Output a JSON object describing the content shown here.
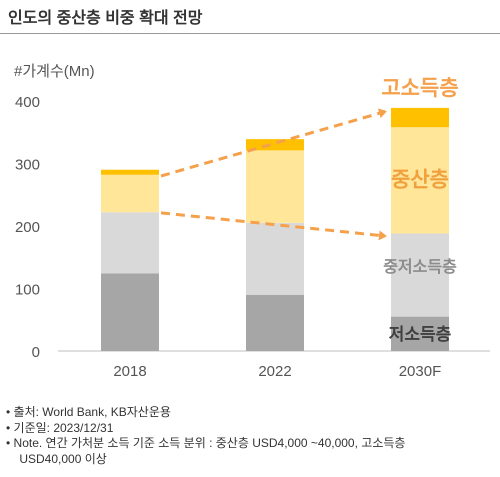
{
  "title": "인도의 중산층 비중 확대 전망",
  "chart_data": {
    "type": "bar",
    "stacked": true,
    "ylabel": "#가계수(Mn)",
    "ylim": [
      0,
      400
    ],
    "yticks": [
      0,
      100,
      200,
      300,
      400
    ],
    "grid": false,
    "categories": [
      "2018",
      "2022",
      "2030F"
    ],
    "series": [
      {
        "name": "저소득층",
        "color": "#a6a6a6",
        "values": [
          124,
          90,
          55
        ]
      },
      {
        "name": "중저소득층",
        "color": "#d9d9d9",
        "values": [
          98,
          115,
          133
        ]
      },
      {
        "name": "중산층",
        "color": "#ffe699",
        "values": [
          60,
          116,
          170
        ]
      },
      {
        "name": "고소득층",
        "color": "#ffc000",
        "values": [
          8,
          18,
          31
        ]
      }
    ],
    "annotations": [
      {
        "text": "고소득층",
        "color": "#f5a04a"
      },
      {
        "text": "중산층",
        "color": "#f0a03c"
      },
      {
        "text": "중저소득층",
        "color": "#8c8c8c"
      },
      {
        "text": "저소득층",
        "color": "#404040"
      }
    ],
    "arrow_color": "#f5a04a"
  },
  "notes": [
    "•  출처: World Bank, KB자산운용",
    "•  기준일: 2023/12/31",
    "•  Note. 연간 가처분 소득 기준 소득 분위 : 중산층 USD4,000 ~40,000, 고소득층",
    "    USD40,000 이상"
  ]
}
